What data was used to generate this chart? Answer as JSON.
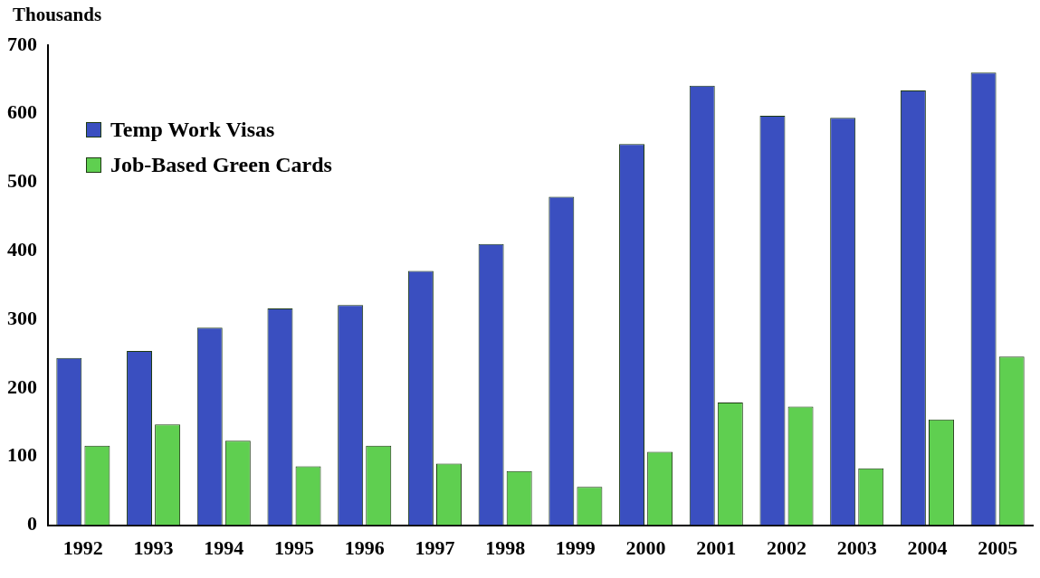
{
  "chart_data": {
    "type": "bar",
    "ylabel": "Thousands",
    "categories": [
      "1992",
      "1993",
      "1994",
      "1995",
      "1996",
      "1997",
      "1998",
      "1999",
      "2000",
      "2001",
      "2002",
      "2003",
      "2004",
      "2005"
    ],
    "series": [
      {
        "name": "Temp Work Visas",
        "color": "#3a4fc0",
        "values": [
          244,
          254,
          288,
          316,
          321,
          371,
          410,
          479,
          556,
          641,
          597,
          594,
          634,
          660
        ]
      },
      {
        "name": "Job-Based Green Cards",
        "color": "#5fcf50",
        "values": [
          116,
          147,
          123,
          86,
          116,
          90,
          79,
          56,
          107,
          179,
          173,
          83,
          154,
          246
        ]
      }
    ],
    "ylim": [
      0,
      700
    ],
    "yticks": [
      0,
      100,
      200,
      300,
      400,
      500,
      600,
      700
    ],
    "grid": false,
    "legend": "top left"
  }
}
